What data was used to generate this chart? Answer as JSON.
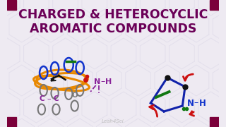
{
  "bg_color": "#eeeaf2",
  "title_line1": "CHARGED & HETEROCYCLIC",
  "title_line2": "AROMATIC COMPOUNDS",
  "title_color": "#6b0057",
  "title_fontsize": 12.5,
  "watermark": "Leah4Sci",
  "watermark_color": "#bbbbbb",
  "corner_color": "#7b003a",
  "hex_color": "#dcd8e8",
  "purple": "#882299",
  "blue": "#1133cc",
  "dark_blue": "#1122aa",
  "red": "#cc1111",
  "orange": "#e88800",
  "green": "#117711",
  "gray": "#777777",
  "black": "#111111"
}
